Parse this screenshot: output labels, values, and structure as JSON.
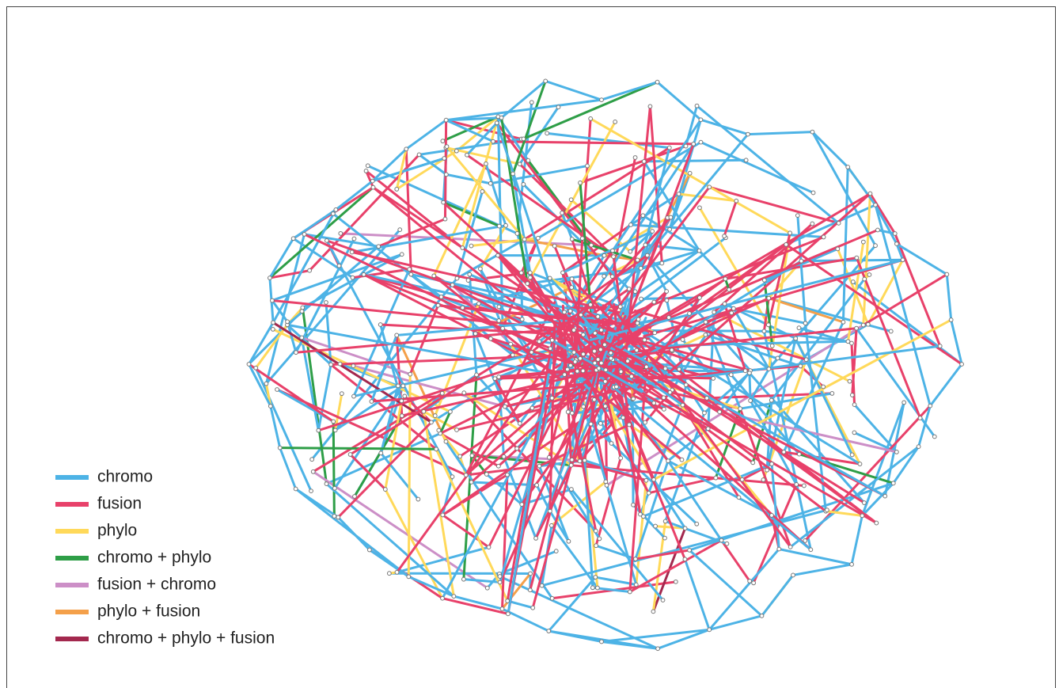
{
  "legend": {
    "items": [
      {
        "label": "chromo",
        "color": "#4db3e6"
      },
      {
        "label": "fusion",
        "color": "#e8416a"
      },
      {
        "label": "phylo",
        "color": "#ffd95a"
      },
      {
        "label": "chromo + phylo",
        "color": "#2e9e47"
      },
      {
        "label": "fusion + chromo",
        "color": "#cc8fc7"
      },
      {
        "label": "phylo + fusion",
        "color": "#f4a04a"
      },
      {
        "label": "chromo + phylo + fusion",
        "color": "#a3284e"
      }
    ]
  }
}
